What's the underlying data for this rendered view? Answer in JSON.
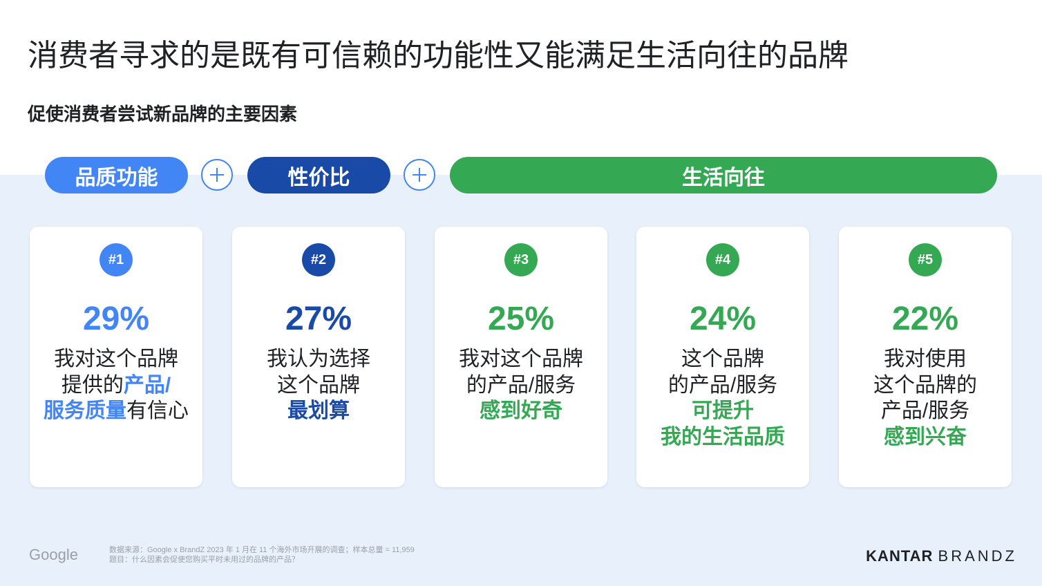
{
  "title": "消费者寻求的是既有可信赖的功能性又能满足生活向往的品牌",
  "subtitle": "促使消费者尝试新品牌的主要因素",
  "categories": {
    "quality": "品质功能",
    "value": "性价比",
    "aspiration": "生活向往"
  },
  "colors": {
    "light_blue": "#4285f4",
    "dark_blue": "#1a4aa8",
    "green": "#34a853",
    "band": "#e8f0fb"
  },
  "cards": [
    {
      "rank": "#1",
      "percent": "29%",
      "line1": "我对这个品牌",
      "line2a": "提供的",
      "line2b": "产品/",
      "line3a": "服务质量",
      "line3b": "有信心"
    },
    {
      "rank": "#2",
      "percent": "27%",
      "line1": "我认为选择",
      "line2": "这个品牌",
      "line3": "最划算"
    },
    {
      "rank": "#3",
      "percent": "25%",
      "line1": "我对这个品牌",
      "line2": "的产品/服务",
      "line3": "感到好奇"
    },
    {
      "rank": "#4",
      "percent": "24%",
      "line1": "这个品牌",
      "line2": "的产品/服务",
      "line3": "可提升",
      "line4": "我的生活品质"
    },
    {
      "rank": "#5",
      "percent": "22%",
      "line1": "我对使用",
      "line2": "这个品牌的",
      "line3": "产品/服务",
      "line4": "感到兴奋"
    }
  ],
  "footer": {
    "google": "Google",
    "source": "数据来源：Google x BrandZ 2023 年 1 月在 11 个海外市场开展的调查；样本总量 = 11,959",
    "question": "题目：什么因素会促使您购买平时未用过的品牌的产品？",
    "kantar": "KANTAR",
    "brandz": "BRANDZ"
  }
}
